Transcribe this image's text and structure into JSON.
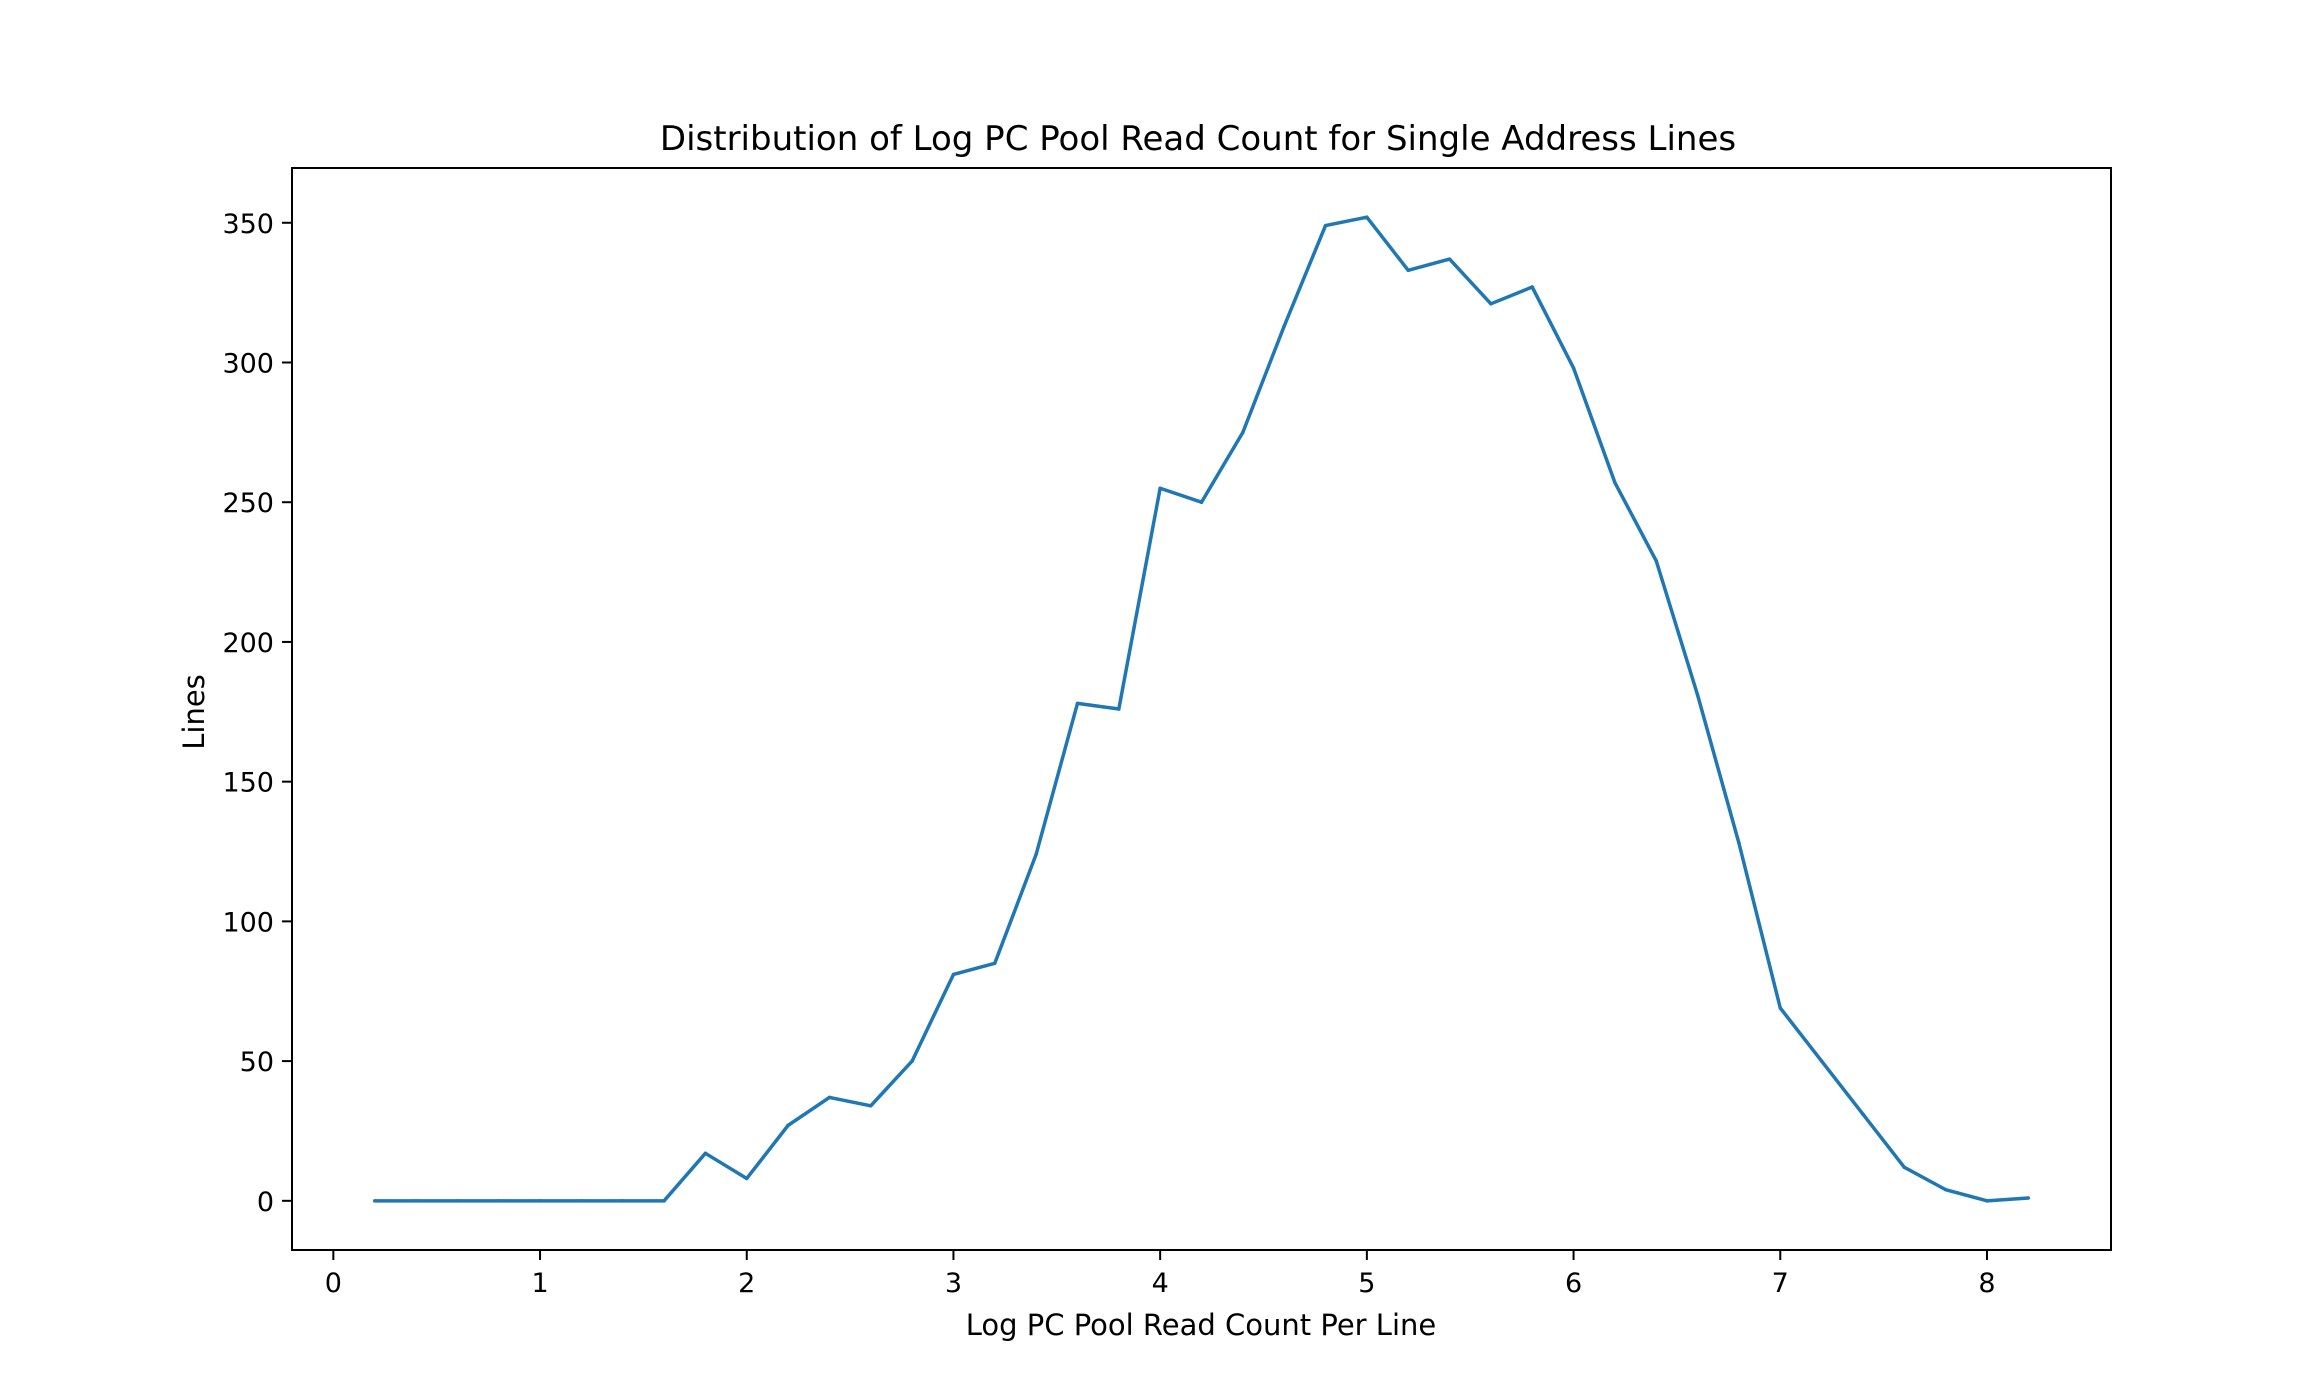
{
  "chart_data": {
    "type": "line",
    "title": "Distribution of Log PC Pool Read Count for Single Address Lines",
    "xlabel": "Log PC Pool Read Count Per Line",
    "ylabel": "Lines",
    "xlim": [
      -0.2,
      8.6
    ],
    "ylim": [
      -17.6,
      369.6
    ],
    "x_ticks": [
      0,
      1,
      2,
      3,
      4,
      5,
      6,
      7,
      8
    ],
    "x_tick_labels": [
      "0",
      "1",
      "2",
      "3",
      "4",
      "5",
      "6",
      "7",
      "8"
    ],
    "y_ticks": [
      0,
      50,
      100,
      150,
      200,
      250,
      300,
      350
    ],
    "y_tick_labels": [
      "0",
      "50",
      "100",
      "150",
      "200",
      "250",
      "300",
      "350"
    ],
    "grid": false,
    "legend": "none",
    "series": [
      {
        "color": "#1f77b4",
        "x": [
          0.2,
          0.4,
          0.6,
          0.8,
          1.0,
          1.2,
          1.4,
          1.6,
          1.8,
          2.0,
          2.2,
          2.4,
          2.6,
          2.8,
          3.0,
          3.2,
          3.4,
          3.6,
          3.8,
          4.0,
          4.2,
          4.4,
          4.6,
          4.8,
          5.0,
          5.2,
          5.4,
          5.6,
          5.8,
          6.0,
          6.2,
          6.4,
          6.6,
          6.8,
          7.0,
          7.2,
          7.4,
          7.6,
          7.8,
          8.0,
          8.2
        ],
        "y": [
          0,
          0,
          0,
          0,
          0,
          0,
          0,
          0,
          17,
          8,
          27,
          37,
          34,
          50,
          81,
          85,
          124,
          178,
          176,
          255,
          250,
          275,
          313,
          349,
          352,
          333,
          337,
          321,
          327,
          298,
          257,
          229,
          181,
          128,
          69,
          50,
          31,
          12,
          4,
          0,
          1
        ]
      }
    ]
  }
}
